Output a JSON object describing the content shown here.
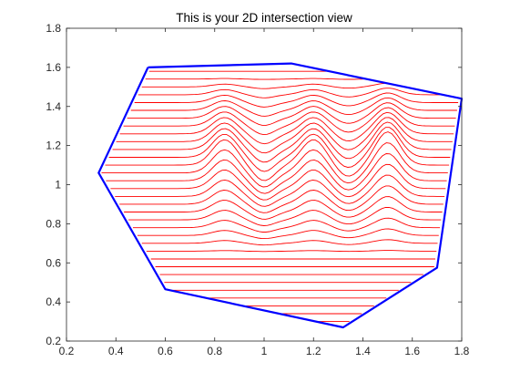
{
  "chart_data": {
    "type": "line",
    "title": "This is your 2D intersection view",
    "xlabel": "",
    "ylabel": "",
    "xlim": [
      0.2,
      1.8
    ],
    "ylim": [
      0.2,
      1.8
    ],
    "xticks": [
      0.2,
      0.4,
      0.6,
      0.8,
      1,
      1.2,
      1.4,
      1.6,
      1.8
    ],
    "yticks": [
      0.2,
      0.4,
      0.6,
      0.8,
      1,
      1.2,
      1.4,
      1.6,
      1.8
    ],
    "xtick_labels": [
      "0.2",
      "0.4",
      "0.6",
      "0.8",
      "1",
      "1.2",
      "1.4",
      "1.6",
      "1.8"
    ],
    "ytick_labels": [
      "0.2",
      "0.4",
      "0.6",
      "0.8",
      "1",
      "1.2",
      "1.4",
      "1.6",
      "1.8"
    ],
    "grid": false,
    "colors": {
      "boundary": "#0000ff",
      "contours": "#ff0000",
      "axes": "#262626"
    },
    "series": [
      {
        "role": "boundary",
        "x": [
          0.53,
          1.11,
          1.8,
          1.7,
          1.32,
          0.6,
          0.33,
          0.53
        ],
        "y": [
          1.6,
          1.62,
          1.44,
          0.575,
          0.27,
          0.465,
          1.06,
          1.6
        ]
      }
    ],
    "contours": {
      "role": "interior-offset-paths",
      "levels": [
        0.3,
        0.34,
        0.38,
        0.42,
        0.46,
        0.5,
        0.54,
        0.58,
        0.62,
        0.66,
        0.7,
        0.74,
        0.78,
        0.82,
        0.86,
        0.9,
        0.94,
        0.98,
        1.02,
        1.06,
        1.1,
        1.14,
        1.18,
        1.22,
        1.26,
        1.3,
        1.34,
        1.38,
        1.42,
        1.46,
        1.5,
        1.54,
        1.58
      ],
      "bumps": [
        [
          0.84,
          0.13
        ],
        [
          1.2,
          0.13
        ],
        [
          1.5,
          0.17
        ]
      ],
      "dips": [
        [
          1.0,
          0.08
        ],
        [
          1.34,
          0.06
        ]
      ]
    }
  }
}
